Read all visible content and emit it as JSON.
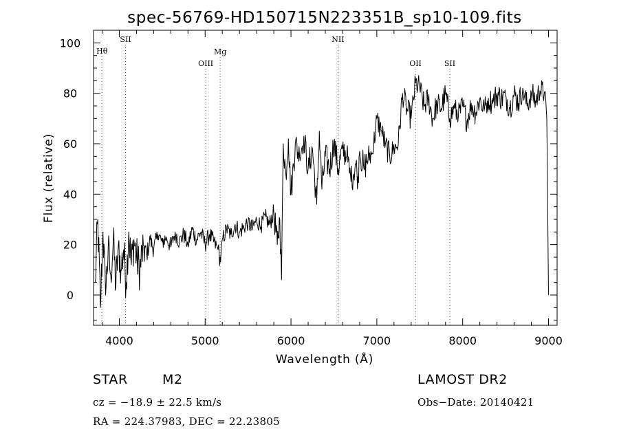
{
  "chart_data": {
    "type": "line",
    "title": "spec-56769-HD150715N223351B_sp10-109.fits",
    "xlabel": "Wavelength (Å)",
    "ylabel": "Flux (relative)",
    "xlim": [
      3700,
      9100
    ],
    "ylim": [
      -12,
      105
    ],
    "x_ticks": [
      4000,
      5000,
      6000,
      7000,
      8000,
      9000
    ],
    "x_tick_labels": [
      "4000",
      "5000",
      "6000",
      "7000",
      "8000",
      "9000"
    ],
    "y_ticks": [
      0,
      20,
      40,
      60,
      80,
      100
    ],
    "y_tick_labels": [
      "0",
      "20",
      "40",
      "60",
      "80",
      "100"
    ],
    "grid": false,
    "line_color": "#000000",
    "series": [
      {
        "x": [
          3720,
          3750,
          3780,
          3810,
          3840,
          3870,
          3900,
          3930,
          3960,
          3990,
          4020,
          4050,
          4080,
          4110,
          4140,
          4170,
          4200,
          4240,
          4280,
          4320,
          4360,
          4400,
          4450,
          4500,
          4550,
          4600,
          4650,
          4700,
          4750,
          4800,
          4850,
          4900,
          4950,
          5000,
          5050,
          5100,
          5150,
          5180,
          5200,
          5250,
          5300,
          5350,
          5400,
          5450,
          5500,
          5550,
          5600,
          5650,
          5700,
          5750,
          5800,
          5840,
          5870,
          5890,
          5910,
          5940,
          5970,
          6000,
          6050,
          6100,
          6150,
          6200,
          6250,
          6300,
          6330,
          6360,
          6400,
          6450,
          6500,
          6550,
          6600,
          6650,
          6700,
          6750,
          6780,
          6800,
          6850,
          6900,
          6950,
          7000,
          7050,
          7100,
          7150,
          7200,
          7250,
          7300,
          7350,
          7400,
          7450,
          7500,
          7550,
          7600,
          7650,
          7700,
          7750,
          7800,
          7850,
          7900,
          7950,
          8000,
          8050,
          8100,
          8150,
          8200,
          8250,
          8300,
          8350,
          8400,
          8450,
          8500,
          8550,
          8600,
          8650,
          8700,
          8750,
          8800,
          8850,
          8900,
          8950,
          8980,
          9000
        ],
        "y": [
          5,
          30,
          -5,
          25,
          0,
          18,
          8,
          22,
          3,
          20,
          10,
          18,
          5,
          25,
          12,
          22,
          15,
          10,
          20,
          16,
          22,
          18,
          24,
          21,
          23,
          19,
          25,
          21,
          24,
          20,
          26,
          22,
          25,
          20,
          24,
          21,
          18,
          13,
          22,
          26,
          24,
          28,
          25,
          27,
          29,
          26,
          30,
          27,
          31,
          28,
          33,
          20,
          30,
          6,
          60,
          48,
          62,
          40,
          60,
          55,
          63,
          50,
          58,
          36,
          65,
          42,
          55,
          50,
          60,
          50,
          58,
          55,
          45,
          52,
          47,
          57,
          50,
          55,
          56,
          70,
          65,
          60,
          55,
          58,
          60,
          80,
          74,
          70,
          84,
          82,
          75,
          78,
          70,
          76,
          74,
          80,
          70,
          74,
          71,
          75,
          69,
          76,
          72,
          78,
          73,
          78,
          76,
          80,
          78,
          79,
          74,
          80,
          76,
          82,
          75,
          80,
          77,
          81,
          80,
          70,
          0
        ]
      }
    ],
    "spectral_lines": [
      {
        "label": "Hθ",
        "x": 3798
      },
      {
        "label": "SII",
        "x": 4072
      },
      {
        "label": "OIII",
        "x": 5007
      },
      {
        "label": "Mg",
        "x": 5175
      },
      {
        "label": "NII",
        "x": 6548
      },
      {
        "label": "OII",
        "x": 7450
      },
      {
        "label": "SII",
        "x": 7850
      }
    ]
  },
  "info": {
    "object_class": "STAR",
    "subclass": "M2",
    "survey": "LAMOST DR2",
    "cz": "cz = −18.9 ± 22.5 km/s",
    "obs_date": "Obs−Date: 20140421",
    "coords": "RA = 224.37983, DEC =  22.23805"
  }
}
